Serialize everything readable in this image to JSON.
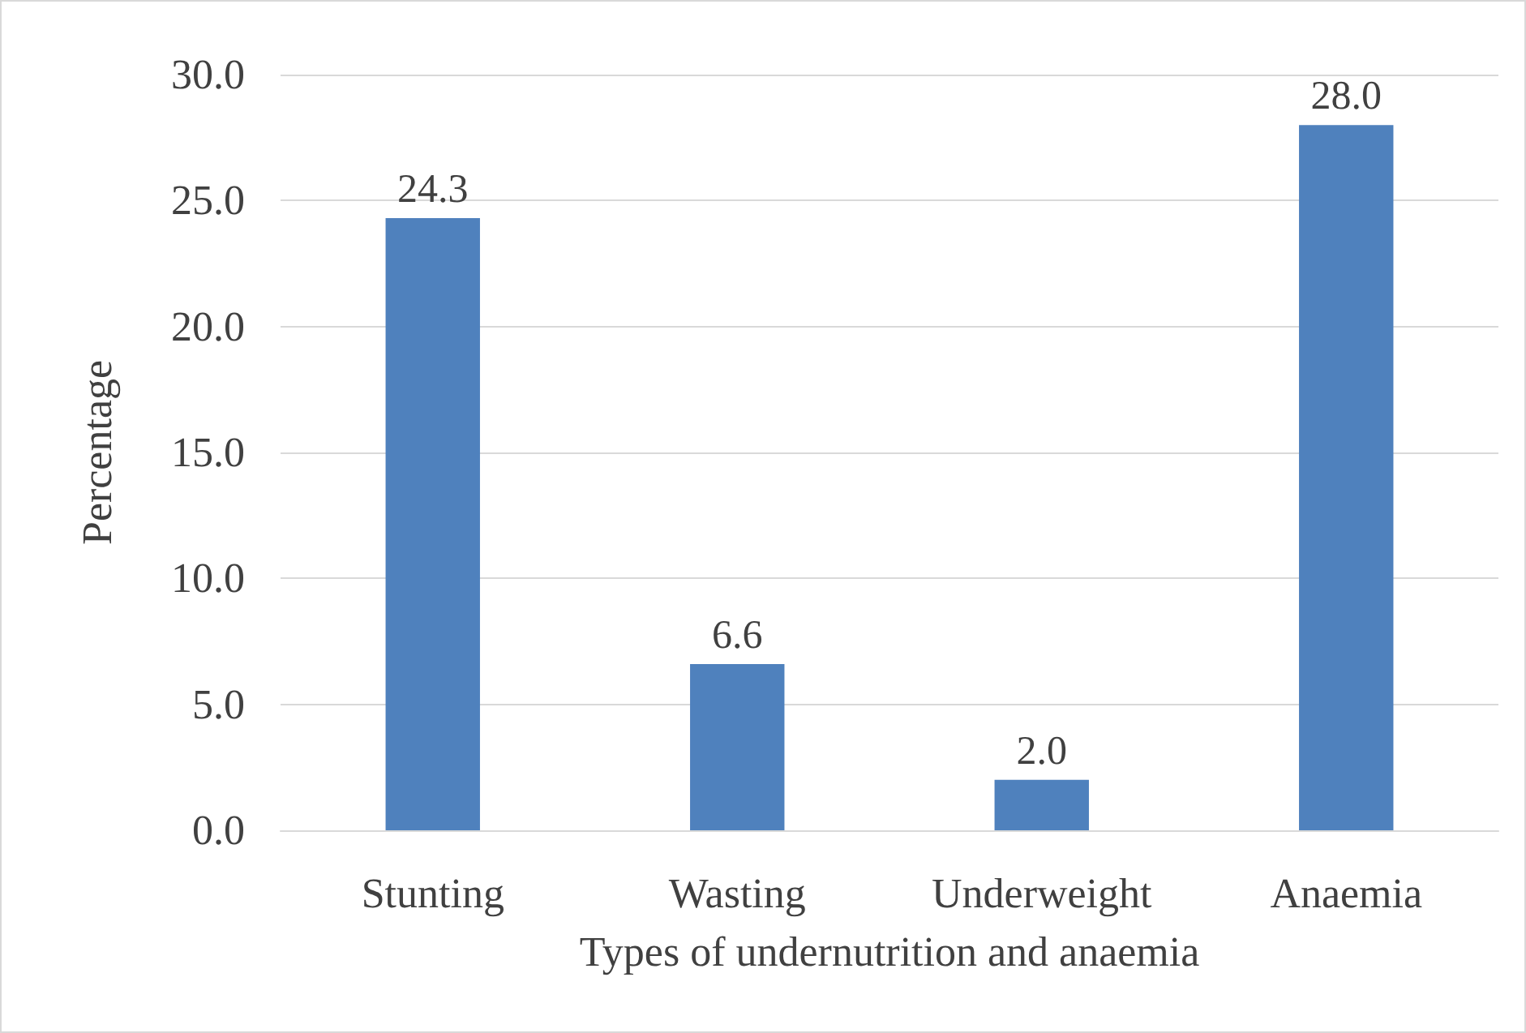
{
  "chart_data": {
    "type": "bar",
    "xlabel": "Types of undernutrition and anaemia",
    "ylabel": "Percentage",
    "categories": [
      "Stunting",
      "Wasting",
      "Underweight",
      "Anaemia"
    ],
    "values": [
      24.3,
      6.6,
      2.0,
      28.0
    ],
    "value_labels": [
      "24.3",
      "6.6",
      "2.0",
      "28.0"
    ],
    "color": "#4f81bd",
    "ylim": [
      0,
      30
    ],
    "yticks": [
      {
        "value": 0,
        "label": "0.0"
      },
      {
        "value": 5,
        "label": "5.0"
      },
      {
        "value": 10,
        "label": "10.0"
      },
      {
        "value": 15,
        "label": "15.0"
      },
      {
        "value": 20,
        "label": "20.0"
      },
      {
        "value": 25,
        "label": "25.0"
      },
      {
        "value": 30,
        "label": "30.0"
      }
    ],
    "grid": true
  }
}
